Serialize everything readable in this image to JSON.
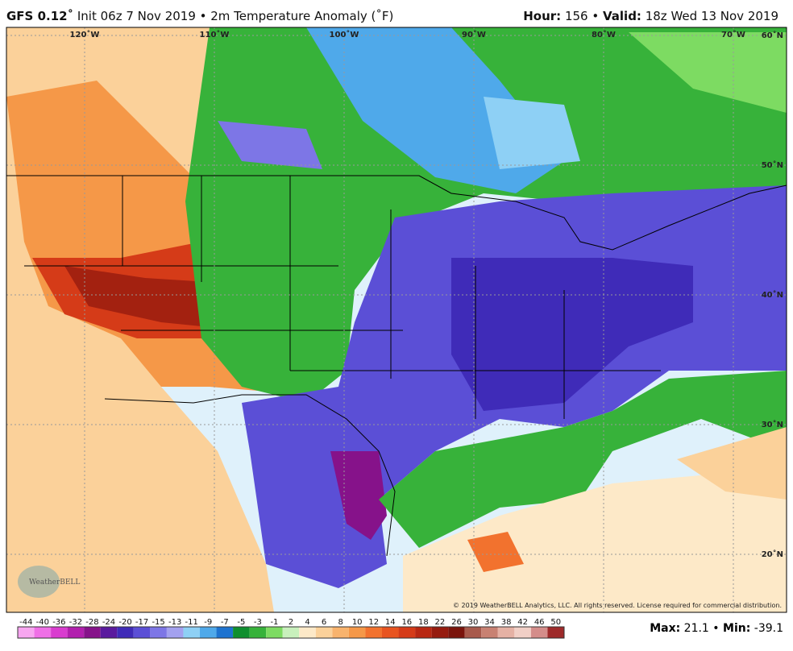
{
  "header": {
    "model": "GFS 0.12˚",
    "info": "Init 06z 7 Nov 2019 • 2m Temperature Anomaly (˚F)",
    "hour_label": "Hour:",
    "hour": "156 •",
    "valid_label": "Valid:",
    "valid": "18z Wed 13 Nov 2019"
  },
  "map": {
    "lon_labels": [
      "120˚W",
      "110˚W",
      "100˚W",
      "90˚W",
      "80˚W",
      "70˚W"
    ],
    "lat_labels": [
      "60˚N",
      "50˚N",
      "40˚N",
      "30˚N",
      "20˚N"
    ],
    "logo": "WeatherBELL",
    "copyright": "© 2019 WeatherBELL Analytics, LLC. All rights reserved. License required for commercial distribution."
  },
  "colorbar": {
    "labels": [
      "-44",
      "-40",
      "-36",
      "-32",
      "-28",
      "-24",
      "-20",
      "-17",
      "-15",
      "-13",
      "-11",
      "-9",
      "-7",
      "-5",
      "-3",
      "-1",
      "2",
      "4",
      "6",
      "8",
      "10",
      "12",
      "14",
      "16",
      "18",
      "22",
      "26",
      "30",
      "34",
      "38",
      "42",
      "46",
      "50"
    ],
    "colors": [
      "#f7a6f0",
      "#ef6fe6",
      "#d93ccf",
      "#b21fae",
      "#86128a",
      "#5a1a9e",
      "#3f2bb8",
      "#5b4fd6",
      "#7d76e6",
      "#a3a1ef",
      "#8ed0f5",
      "#4fa9ea",
      "#1e73d0",
      "#0f8f2f",
      "#37b23a",
      "#7ddb62",
      "#c8f0bc",
      "#fde9c8",
      "#fbd19a",
      "#f8b36d",
      "#f59848",
      "#f2722e",
      "#e85420",
      "#d53b18",
      "#b82712",
      "#961b0f",
      "#7a140c",
      "#a85a4c",
      "#c88172",
      "#e5b1a4",
      "#f1cfc6",
      "#d48d8a",
      "#9e2a2a"
    ]
  },
  "footer": {
    "max_label": "Max:",
    "max": "21.1",
    "sep": "•",
    "min_label": "Min:",
    "min": "-39.1"
  }
}
